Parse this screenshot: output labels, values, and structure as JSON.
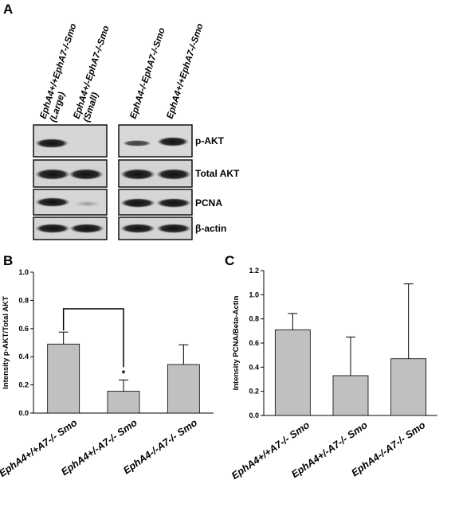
{
  "panels": {
    "a": "A",
    "b": "B",
    "c": "C"
  },
  "blot": {
    "lanes": [
      {
        "line1": "EphA4+/+EphA7-/-Smo",
        "line2": "(Large)"
      },
      {
        "line1": "EphA4+/-EphA7-/-Smo",
        "line2": "(Small)"
      },
      {
        "line1": "EphA4-/-EphA7-/-Smo",
        "line2": ""
      },
      {
        "line1": "EphA4+/+EphA7-/-Smo",
        "line2": ""
      }
    ],
    "rows": [
      "p-AKT",
      "Total AKT",
      "PCNA",
      "β-actin"
    ]
  },
  "chart_data": [
    {
      "type": "bar",
      "title": "",
      "categories": [
        "EphA4+/+A7-/- Smo",
        "EphA4+/-A7-/- Smo",
        "EphA4-/-A7-/- Smo"
      ],
      "values": [
        0.49,
        0.155,
        0.345
      ],
      "error": [
        0.085,
        0.08,
        0.14
      ],
      "ylabel": "Intensity p-AKT/Total AKT",
      "xlabel": "",
      "ylim": [
        0,
        1.0
      ],
      "yticks": [
        "0.0",
        "0.2",
        "0.4",
        "0.6",
        "0.8",
        "1.0"
      ],
      "annotation": "*",
      "bar_color": "#c0c0c0"
    },
    {
      "type": "bar",
      "title": "",
      "categories": [
        "EphA4+/+A7-/- Smo",
        "EphA4+/-A7-/- Smo",
        "EphA4-/-A7-/- Smo"
      ],
      "values": [
        0.71,
        0.33,
        0.47
      ],
      "error": [
        0.135,
        0.32,
        0.62
      ],
      "ylabel": "Intensity PCNA/Beta-Actin",
      "xlabel": "",
      "ylim": [
        0,
        1.2
      ],
      "yticks": [
        "0.0",
        "0.2",
        "0.4",
        "0.6",
        "0.8",
        "1.0",
        "1.2"
      ],
      "bar_color": "#c0c0c0"
    }
  ]
}
